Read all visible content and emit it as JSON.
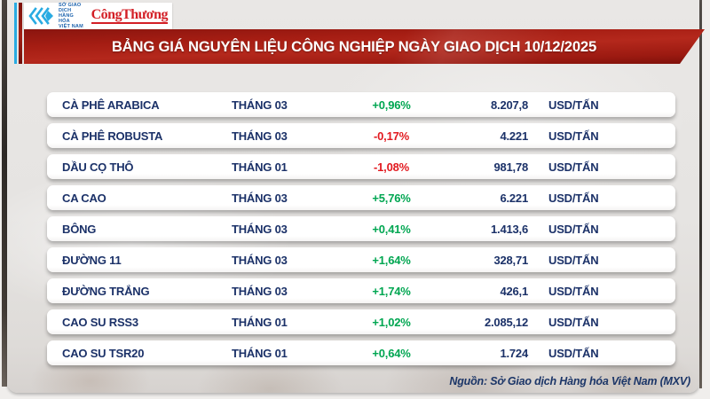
{
  "header": {
    "mxv_org": [
      "SỞ GIAO DỊCH",
      "HÀNG HÓA",
      "VIỆT NAM"
    ],
    "congthuong_logo": "CôngThương",
    "title": "BẢNG GIÁ NGUYÊN LIỆU CÔNG NGHIỆP NGÀY GIAO DỊCH 10/12/2025"
  },
  "table": {
    "rows": [
      {
        "name": "CÀ PHÊ ARABICA",
        "month": "THÁNG 03",
        "change": "+0,96%",
        "direction": "up",
        "price": "8.207,8",
        "unit": "USD/TẤN"
      },
      {
        "name": "CÀ PHÊ ROBUSTA",
        "month": "THÁNG 03",
        "change": "-0,17%",
        "direction": "down",
        "price": "4.221",
        "unit": "USD/TẤN"
      },
      {
        "name": "DẦU CỌ THÔ",
        "month": "THÁNG 01",
        "change": "-1,08%",
        "direction": "down",
        "price": "981,78",
        "unit": "USD/TẤN"
      },
      {
        "name": "CA CAO",
        "month": "THÁNG 03",
        "change": "+5,76%",
        "direction": "up",
        "price": "6.221",
        "unit": "USD/TẤN"
      },
      {
        "name": "BÔNG",
        "month": "THÁNG 03",
        "change": "+0,41%",
        "direction": "up",
        "price": "1.413,6",
        "unit": "USD/TẤN"
      },
      {
        "name": "ĐƯỜNG 11",
        "month": "THÁNG 03",
        "change": "+1,64%",
        "direction": "up",
        "price": "328,71",
        "unit": "USD/TẤN"
      },
      {
        "name": "ĐƯỜNG TRẮNG",
        "month": "THÁNG 03",
        "change": "+1,74%",
        "direction": "up",
        "price": "426,1",
        "unit": "USD/TẤN"
      },
      {
        "name": "CAO SU RSS3",
        "month": "THÁNG 01",
        "change": "+1,02%",
        "direction": "up",
        "price": "2.085,12",
        "unit": "USD/TẤN"
      },
      {
        "name": "CAO SU TSR20",
        "month": "THÁNG 01",
        "change": "+0,64%",
        "direction": "up",
        "price": "1.724",
        "unit": "USD/TẤN"
      }
    ]
  },
  "footer": {
    "source": "Nguồn: Sở Giao dịch Hàng hóa Việt Nam (MXV)"
  },
  "colors": {
    "up": "#00a651",
    "down": "#e2191f",
    "navy": "#1b3168",
    "banner_red": "#a51d13",
    "accent_cyan": "#29abe2"
  },
  "chart_data": {
    "type": "table",
    "title": "BẢNG GIÁ NGUYÊN LIỆU CÔNG NGHIỆP NGÀY GIAO DỊCH 10/12/2025",
    "categories": [
      "CÀ PHÊ ARABICA",
      "CÀ PHÊ ROBUSTA",
      "DẦU CỌ THÔ",
      "CA CAO",
      "BÔNG",
      "ĐƯỜNG 11",
      "ĐƯỜNG TRẮNG",
      "CAO SU RSS3",
      "CAO SU TSR20"
    ],
    "contract_months": [
      "THÁNG 03",
      "THÁNG 03",
      "THÁNG 01",
      "THÁNG 03",
      "THÁNG 03",
      "THÁNG 03",
      "THÁNG 03",
      "THÁNG 01",
      "THÁNG 01"
    ],
    "change_percent": [
      0.96,
      -0.17,
      -1.08,
      5.76,
      0.41,
      1.64,
      1.74,
      1.02,
      0.64
    ],
    "prices": [
      8207.8,
      4221,
      981.78,
      6221,
      1413.6,
      328.71,
      426.1,
      2085.12,
      1724
    ],
    "unit": "USD/TẤN",
    "source": "Nguồn: Sở Giao dịch Hàng hóa Việt Nam (MXV)"
  }
}
